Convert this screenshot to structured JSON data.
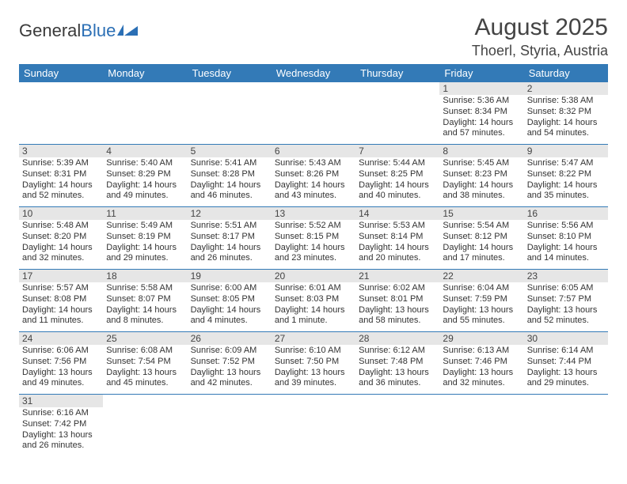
{
  "brand": {
    "part1": "General",
    "part2": "Blue"
  },
  "title": "August 2025",
  "location": "Thoerl, Styria, Austria",
  "colors": {
    "header_bg": "#337ab7",
    "header_fg": "#ffffff",
    "daynum_bg": "#e6e6e6",
    "rule": "#337ab7"
  },
  "weekdays": [
    "Sunday",
    "Monday",
    "Tuesday",
    "Wednesday",
    "Thursday",
    "Friday",
    "Saturday"
  ],
  "days": {
    "1": {
      "sunrise": "5:36 AM",
      "sunset": "8:34 PM",
      "dayh": "14",
      "daym": "57"
    },
    "2": {
      "sunrise": "5:38 AM",
      "sunset": "8:32 PM",
      "dayh": "14",
      "daym": "54"
    },
    "3": {
      "sunrise": "5:39 AM",
      "sunset": "8:31 PM",
      "dayh": "14",
      "daym": "52"
    },
    "4": {
      "sunrise": "5:40 AM",
      "sunset": "8:29 PM",
      "dayh": "14",
      "daym": "49"
    },
    "5": {
      "sunrise": "5:41 AM",
      "sunset": "8:28 PM",
      "dayh": "14",
      "daym": "46"
    },
    "6": {
      "sunrise": "5:43 AM",
      "sunset": "8:26 PM",
      "dayh": "14",
      "daym": "43"
    },
    "7": {
      "sunrise": "5:44 AM",
      "sunset": "8:25 PM",
      "dayh": "14",
      "daym": "40"
    },
    "8": {
      "sunrise": "5:45 AM",
      "sunset": "8:23 PM",
      "dayh": "14",
      "daym": "38"
    },
    "9": {
      "sunrise": "5:47 AM",
      "sunset": "8:22 PM",
      "dayh": "14",
      "daym": "35"
    },
    "10": {
      "sunrise": "5:48 AM",
      "sunset": "8:20 PM",
      "dayh": "14",
      "daym": "32"
    },
    "11": {
      "sunrise": "5:49 AM",
      "sunset": "8:19 PM",
      "dayh": "14",
      "daym": "29"
    },
    "12": {
      "sunrise": "5:51 AM",
      "sunset": "8:17 PM",
      "dayh": "14",
      "daym": "26"
    },
    "13": {
      "sunrise": "5:52 AM",
      "sunset": "8:15 PM",
      "dayh": "14",
      "daym": "23"
    },
    "14": {
      "sunrise": "5:53 AM",
      "sunset": "8:14 PM",
      "dayh": "14",
      "daym": "20"
    },
    "15": {
      "sunrise": "5:54 AM",
      "sunset": "8:12 PM",
      "dayh": "14",
      "daym": "17"
    },
    "16": {
      "sunrise": "5:56 AM",
      "sunset": "8:10 PM",
      "dayh": "14",
      "daym": "14"
    },
    "17": {
      "sunrise": "5:57 AM",
      "sunset": "8:08 PM",
      "dayh": "14",
      "daym": "11"
    },
    "18": {
      "sunrise": "5:58 AM",
      "sunset": "8:07 PM",
      "dayh": "14",
      "daym": "8"
    },
    "19": {
      "sunrise": "6:00 AM",
      "sunset": "8:05 PM",
      "dayh": "14",
      "daym": "4"
    },
    "20": {
      "sunrise": "6:01 AM",
      "sunset": "8:03 PM",
      "dayh": "14",
      "daym": "1"
    },
    "21": {
      "sunrise": "6:02 AM",
      "sunset": "8:01 PM",
      "dayh": "13",
      "daym": "58"
    },
    "22": {
      "sunrise": "6:04 AM",
      "sunset": "7:59 PM",
      "dayh": "13",
      "daym": "55"
    },
    "23": {
      "sunrise": "6:05 AM",
      "sunset": "7:57 PM",
      "dayh": "13",
      "daym": "52"
    },
    "24": {
      "sunrise": "6:06 AM",
      "sunset": "7:56 PM",
      "dayh": "13",
      "daym": "49"
    },
    "25": {
      "sunrise": "6:08 AM",
      "sunset": "7:54 PM",
      "dayh": "13",
      "daym": "45"
    },
    "26": {
      "sunrise": "6:09 AM",
      "sunset": "7:52 PM",
      "dayh": "13",
      "daym": "42"
    },
    "27": {
      "sunrise": "6:10 AM",
      "sunset": "7:50 PM",
      "dayh": "13",
      "daym": "39"
    },
    "28": {
      "sunrise": "6:12 AM",
      "sunset": "7:48 PM",
      "dayh": "13",
      "daym": "36"
    },
    "29": {
      "sunrise": "6:13 AM",
      "sunset": "7:46 PM",
      "dayh": "13",
      "daym": "32"
    },
    "30": {
      "sunrise": "6:14 AM",
      "sunset": "7:44 PM",
      "dayh": "13",
      "daym": "29"
    },
    "31": {
      "sunrise": "6:16 AM",
      "sunset": "7:42 PM",
      "dayh": "13",
      "daym": "26"
    }
  },
  "layout": {
    "first_weekday_index": 5,
    "num_days": 31
  },
  "labels": {
    "sunrise": "Sunrise: ",
    "sunset": "Sunset: ",
    "daylight1": "Daylight: ",
    "daylight2": " hours and ",
    "daylight3": " minutes.",
    "daylight2s": " hours and ",
    "daylight_single": " minute."
  }
}
